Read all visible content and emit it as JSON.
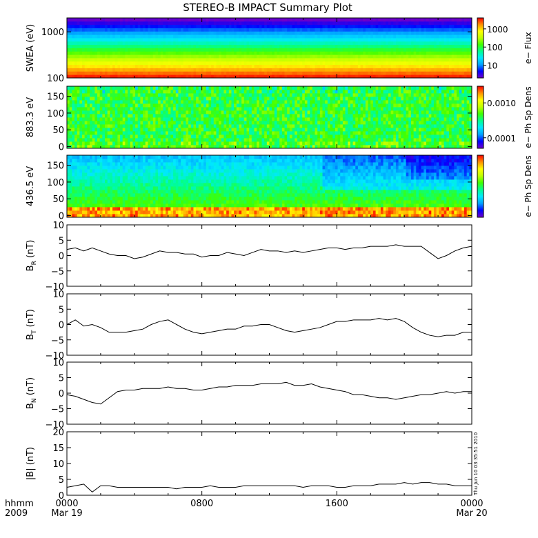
{
  "title": "STEREO-B IMPACT Summary Plot",
  "timestamp": "Thu Jun 10 03:35:51 2010",
  "x_axis": {
    "corner_labels": [
      "hhmm",
      "2009"
    ],
    "ticks": [
      {
        "hours": 0,
        "line1": "0000",
        "line2": "Mar 19"
      },
      {
        "hours": 8,
        "line1": "0800",
        "line2": ""
      },
      {
        "hours": 16,
        "line1": "1600",
        "line2": ""
      },
      {
        "hours": 24,
        "line1": "0000",
        "line2": "Mar 20"
      }
    ]
  },
  "colors": {
    "spectrogram_scale": [
      "#7000c8",
      "#0000ff",
      "#00a0ff",
      "#00e8ff",
      "#00ff90",
      "#40ff00",
      "#c0ff00",
      "#ffff00",
      "#ff9000",
      "#ff0000"
    ]
  },
  "chart_data": [
    {
      "type": "heatmap",
      "id": "swea",
      "ylabel": "SWEA (eV)",
      "yscale": "log",
      "ylim": [
        100,
        2000
      ],
      "y_ticks": [
        {
          "value": 100,
          "label": "100"
        },
        {
          "value": 1000,
          "label": "1000"
        }
      ],
      "colorbar": {
        "label": "e− Flux",
        "scale": "log",
        "range": [
          2,
          4000
        ],
        "ticks": [
          {
            "value": 10,
            "label": "10"
          },
          {
            "value": 100,
            "label": "100"
          },
          {
            "value": 1000,
            "label": "1000"
          }
        ]
      },
      "profile_energy_ev": [
        100,
        140,
        200,
        280,
        400,
        560,
        800,
        1100,
        1500,
        2000
      ],
      "profile_flux": [
        3800,
        2000,
        800,
        300,
        120,
        60,
        20,
        8,
        4,
        2.5
      ],
      "xlim_hours": [
        0,
        24
      ]
    },
    {
      "type": "heatmap",
      "id": "pad_883",
      "ylabel": "883.3 eV",
      "ylim": [
        -5,
        180
      ],
      "y_ticks": [
        {
          "value": 0,
          "label": "0"
        },
        {
          "value": 50,
          "label": "50"
        },
        {
          "value": 100,
          "label": "100"
        },
        {
          "value": 150,
          "label": "150"
        }
      ],
      "colorbar": {
        "label": "e− Ph Sp Dens",
        "scale": "log",
        "range": [
          5e-05,
          0.003
        ],
        "ticks": [
          {
            "value": 0.0001,
            "label": "0.0001"
          },
          {
            "value": 0.001,
            "label": "0.0010"
          }
        ]
      },
      "base_value": 0.0006,
      "xlim_hours": [
        0,
        24
      ]
    },
    {
      "type": "heatmap",
      "id": "pad_436",
      "ylabel": "436.5 eV",
      "ylim": [
        -5,
        180
      ],
      "y_ticks": [
        {
          "value": 0,
          "label": "0"
        },
        {
          "value": 50,
          "label": "50"
        },
        {
          "value": 100,
          "label": "100"
        },
        {
          "value": 150,
          "label": "150"
        }
      ],
      "colorbar": {
        "label": "e− Ph Sp Dens",
        "scale": "linear",
        "range": [
          0,
          1
        ],
        "ticks": []
      },
      "xlim_hours": [
        0,
        24
      ]
    },
    {
      "type": "line",
      "id": "br",
      "ylabel": "B",
      "ylabel_sub": "R",
      "yunit": "(nT)",
      "ylim": [
        -10,
        10
      ],
      "y_ticks": [
        {
          "value": -10,
          "label": "−10"
        },
        {
          "value": -5,
          "label": "−5"
        },
        {
          "value": 0,
          "label": "0"
        },
        {
          "value": 5,
          "label": "5"
        },
        {
          "value": 10,
          "label": "10"
        }
      ],
      "x": [
        0,
        0.5,
        1,
        1.5,
        2,
        2.5,
        3,
        3.5,
        4,
        4.5,
        5,
        5.5,
        6,
        6.5,
        7,
        7.5,
        8,
        8.5,
        9,
        9.5,
        10,
        10.5,
        11,
        11.5,
        12,
        12.5,
        13,
        13.5,
        14,
        14.5,
        15,
        15.5,
        16,
        16.5,
        17,
        17.5,
        18,
        18.5,
        19,
        19.5,
        20,
        20.5,
        21,
        21.5,
        22,
        22.5,
        23,
        23.5,
        24
      ],
      "y": [
        2,
        2.5,
        1.5,
        2.5,
        1.5,
        0.5,
        0,
        0,
        -1,
        -0.5,
        0.5,
        1.5,
        1,
        1,
        0.5,
        0.5,
        -0.5,
        0,
        0,
        1,
        0.5,
        0,
        1,
        2,
        1.5,
        1.5,
        1,
        1.5,
        1,
        1.5,
        2,
        2.5,
        2.5,
        2,
        2.5,
        2.5,
        3,
        3,
        3,
        3.5,
        3,
        3,
        3,
        1,
        -1,
        0,
        1.5,
        2.5,
        3
      ]
    },
    {
      "type": "line",
      "id": "bt",
      "ylabel": "B",
      "ylabel_sub": "T",
      "yunit": "(nT)",
      "ylim": [
        -10,
        10
      ],
      "y_ticks": [
        {
          "value": -10,
          "label": "−10"
        },
        {
          "value": -5,
          "label": "−5"
        },
        {
          "value": 0,
          "label": "0"
        },
        {
          "value": 5,
          "label": "5"
        },
        {
          "value": 10,
          "label": "10"
        }
      ],
      "x": [
        0,
        0.5,
        1,
        1.5,
        2,
        2.5,
        3,
        3.5,
        4,
        4.5,
        5,
        5.5,
        6,
        6.5,
        7,
        7.5,
        8,
        8.5,
        9,
        9.5,
        10,
        10.5,
        11,
        11.5,
        12,
        12.5,
        13,
        13.5,
        14,
        14.5,
        15,
        15.5,
        16,
        16.5,
        17,
        17.5,
        18,
        18.5,
        19,
        19.5,
        20,
        20.5,
        21,
        21.5,
        22,
        22.5,
        23,
        23.5,
        24
      ],
      "y": [
        0,
        1.5,
        -0.5,
        0,
        -1,
        -2.5,
        -2.5,
        -2.5,
        -2,
        -1.5,
        0,
        1,
        1.5,
        0,
        -1.5,
        -2.5,
        -3,
        -2.5,
        -2,
        -1.5,
        -1.5,
        -0.5,
        -0.5,
        0,
        0,
        -1,
        -2,
        -2.5,
        -2,
        -1.5,
        -1,
        0,
        1,
        1,
        1.5,
        1.5,
        1.5,
        2,
        1.5,
        2,
        1,
        -1,
        -2.5,
        -3.5,
        -4,
        -3.5,
        -3.5,
        -2.5,
        -2.5
      ]
    },
    {
      "type": "line",
      "id": "bn",
      "ylabel": "B",
      "ylabel_sub": "N",
      "yunit": "(nT)",
      "ylim": [
        -10,
        10
      ],
      "y_ticks": [
        {
          "value": -10,
          "label": "−10"
        },
        {
          "value": -5,
          "label": "−5"
        },
        {
          "value": 0,
          "label": "0"
        },
        {
          "value": 5,
          "label": "5"
        },
        {
          "value": 10,
          "label": "10"
        }
      ],
      "x": [
        0,
        0.5,
        1,
        1.5,
        2,
        2.5,
        3,
        3.5,
        4,
        4.5,
        5,
        5.5,
        6,
        6.5,
        7,
        7.5,
        8,
        8.5,
        9,
        9.5,
        10,
        10.5,
        11,
        11.5,
        12,
        12.5,
        13,
        13.5,
        14,
        14.5,
        15,
        15.5,
        16,
        16.5,
        17,
        17.5,
        18,
        18.5,
        19,
        19.5,
        20,
        20.5,
        21,
        21.5,
        22,
        22.5,
        23,
        23.5,
        24
      ],
      "y": [
        -0.5,
        -1,
        -2,
        -3,
        -3.5,
        -1.5,
        0.5,
        1,
        1,
        1.5,
        1.5,
        1.5,
        2,
        1.5,
        1.5,
        1,
        1,
        1.5,
        2,
        2,
        2.5,
        2.5,
        2.5,
        3,
        3,
        3,
        3.5,
        2.5,
        2.5,
        3,
        2,
        1.5,
        1,
        0.5,
        -0.5,
        -0.5,
        -1,
        -1.5,
        -1.5,
        -2,
        -1.5,
        -1,
        -0.5,
        -0.5,
        0,
        0.5,
        0,
        0.5,
        0.5
      ]
    },
    {
      "type": "line",
      "id": "bmag",
      "ylabel": "|B|",
      "ylabel_sub": "",
      "yunit": "(nT)",
      "ylim": [
        0,
        20
      ],
      "y_ticks": [
        {
          "value": 0,
          "label": "0"
        },
        {
          "value": 5,
          "label": "5"
        },
        {
          "value": 10,
          "label": "10"
        },
        {
          "value": 15,
          "label": "15"
        },
        {
          "value": 20,
          "label": "20"
        }
      ],
      "x": [
        0,
        0.5,
        1,
        1.5,
        2,
        2.5,
        3,
        3.5,
        4,
        4.5,
        5,
        5.5,
        6,
        6.5,
        7,
        7.5,
        8,
        8.5,
        9,
        9.5,
        10,
        10.5,
        11,
        11.5,
        12,
        12.5,
        13,
        13.5,
        14,
        14.5,
        15,
        15.5,
        16,
        16.5,
        17,
        17.5,
        18,
        18.5,
        19,
        19.5,
        20,
        20.5,
        21,
        21.5,
        22,
        22.5,
        23,
        23.5,
        24
      ],
      "y": [
        2.5,
        3,
        3.5,
        1,
        3,
        3,
        2.5,
        2.5,
        2.5,
        2.5,
        2.5,
        2.5,
        2.5,
        2,
        2.5,
        2.5,
        2.5,
        3,
        2.5,
        2.5,
        2.5,
        3,
        3,
        3,
        3,
        3,
        3,
        3,
        2.5,
        3,
        3,
        3,
        2.5,
        2.5,
        3,
        3,
        3,
        3.5,
        3.5,
        3.5,
        4,
        3.5,
        4,
        4,
        3.5,
        3.5,
        3,
        3,
        3
      ]
    }
  ]
}
